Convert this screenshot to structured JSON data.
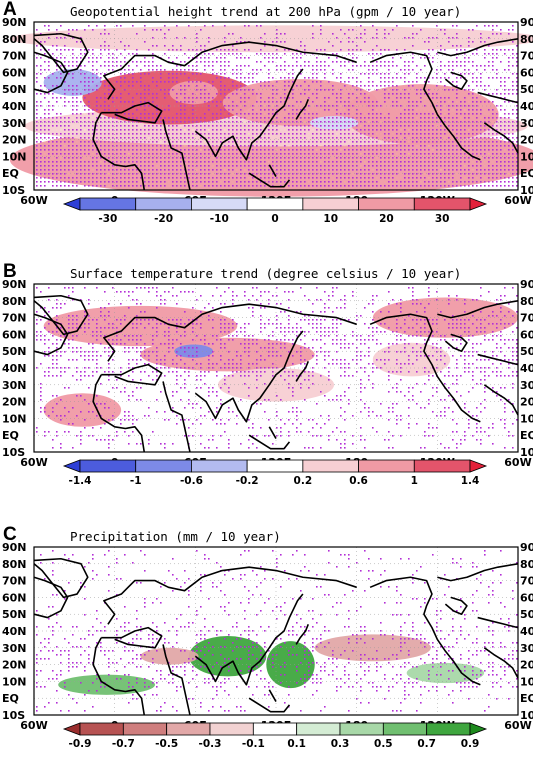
{
  "panels": [
    {
      "letter": "A",
      "title": "Geopotential height trend at 200 hPa (gpm / 10 year)",
      "colorbar_labels": [
        "-30",
        "-20",
        "-10",
        "0",
        "10",
        "20",
        "30"
      ],
      "colors": [
        "#2e3fd6",
        "#6575e3",
        "#a7b0ee",
        "#d6daf7",
        "#ffffff",
        "#f7cfd3",
        "#f09aa5",
        "#e3546b",
        "#e3213a"
      ]
    },
    {
      "letter": "B",
      "title": "Surface temperature trend (degree celsius / 10 year)",
      "colorbar_labels": [
        "-1.4",
        "-1",
        "-0.6",
        "-0.2",
        "0.2",
        "0.6",
        "1",
        "1.4"
      ],
      "colors": [
        "#2e3fd6",
        "#4c5cdd",
        "#7d8ae7",
        "#b3bbf0",
        "#ffffff",
        "#f7cfd3",
        "#f09aa5",
        "#e3546b",
        "#e3213a"
      ]
    },
    {
      "letter": "C",
      "title": "Precipitation (mm / 10 year)",
      "colorbar_labels": [
        "-0.9",
        "-0.7",
        "-0.5",
        "-0.3",
        "-0.1",
        "0.1",
        "0.3",
        "0.5",
        "0.7",
        "0.9"
      ],
      "colors": [
        "#9a2e2e",
        "#b75353",
        "#cf7e7e",
        "#e2a8a8",
        "#f2d2d2",
        "#ffffff",
        "#d4ecd4",
        "#a8d8a8",
        "#70bf70",
        "#3fa63f",
        "#1d8a1d"
      ]
    }
  ],
  "lat_labels": [
    "90N",
    "80N",
    "70N",
    "60N",
    "50N",
    "40N",
    "30N",
    "20N",
    "10N",
    "EQ",
    "10S"
  ],
  "lon_labels": [
    "60W",
    "0",
    "60E",
    "120E",
    "180",
    "120W",
    "60W"
  ],
  "legend_colors": {
    "significance_dots": "#b22fd6",
    "pos_strong": "#e3213a",
    "neg_strong": "#2e3fd6",
    "wet": "#3fa63f",
    "dry": "#9a2e2e"
  }
}
